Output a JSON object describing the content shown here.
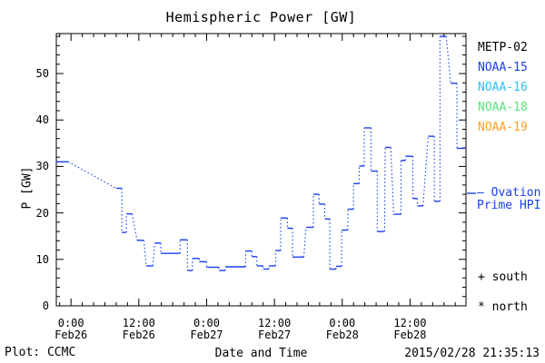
{
  "window": {
    "title": "Hemispheric Power [GW]"
  },
  "footer": {
    "credit": "Plot: CCMC",
    "timestamp": "2015/02/28 21:35:13"
  },
  "legend": {
    "satellites": [
      {
        "label": "METP-02",
        "color": "#000000"
      },
      {
        "label": "NOAA-15",
        "color": "#1a3fee"
      },
      {
        "label": "NOAA-16",
        "color": "#2fc1ef"
      },
      {
        "label": "NOAA-18",
        "color": "#5ce37a"
      },
      {
        "label": "NOAA-19",
        "color": "#ffa126"
      }
    ],
    "ovation": {
      "line1": "— Ovation",
      "line2": "Prime HPI",
      "color": "#1a3fee"
    },
    "markers": [
      {
        "symbol": "+",
        "label": "south"
      },
      {
        "symbol": "*",
        "label": "north"
      }
    ]
  },
  "chart_data": {
    "type": "line",
    "title": "Hemispheric Power [GW]",
    "xlabel": "Date and Time",
    "ylabel": "P [GW]",
    "series_name": "Ovation Prime HPI (blue dotted step line)",
    "series_color": "#1a3fee",
    "axis_color": "#000000",
    "background": "#ffffff",
    "grid": false,
    "legend_position": "right-outside",
    "ylim": [
      0,
      58.6
    ],
    "y_major_ticks": [
      0,
      10,
      20,
      30,
      40,
      50
    ],
    "y_minor_step": 2,
    "x_unit_hours_since": "2015-02-26 00:00",
    "xlim": [
      -2.6,
      69.9
    ],
    "x_major_step_hours": 12,
    "x_minor_step_hours": 2,
    "x_ticks": [
      {
        "t": 0,
        "time": "0:00",
        "date": "Feb26"
      },
      {
        "t": 12,
        "time": "12:00",
        "date": "Feb26"
      },
      {
        "t": 24,
        "time": "0:00",
        "date": "Feb27"
      },
      {
        "t": 36,
        "time": "12:00",
        "date": "Feb27"
      },
      {
        "t": 48,
        "time": "0:00",
        "date": "Feb28"
      },
      {
        "t": 60,
        "time": "12:00",
        "date": "Feb28"
      }
    ],
    "segments_note": "each entry = [t_start_h, t_end_h, GW]; solid flat dash per sample, dotted connectors between samples",
    "segments": [
      [
        -2.6,
        -0.5,
        31.0
      ],
      [
        8.0,
        9.0,
        25.3
      ],
      [
        9.0,
        9.8,
        15.8
      ],
      [
        9.8,
        10.8,
        19.8
      ],
      [
        11.7,
        12.9,
        14.1
      ],
      [
        13.3,
        14.5,
        8.6
      ],
      [
        14.8,
        15.9,
        13.5
      ],
      [
        15.9,
        19.3,
        11.3
      ],
      [
        19.3,
        20.6,
        14.2
      ],
      [
        20.6,
        21.5,
        7.6
      ],
      [
        21.5,
        22.7,
        10.2
      ],
      [
        22.7,
        24.0,
        9.5
      ],
      [
        24.0,
        26.2,
        8.3
      ],
      [
        26.2,
        27.3,
        7.6
      ],
      [
        27.3,
        30.9,
        8.4
      ],
      [
        30.9,
        32.0,
        11.8
      ],
      [
        32.0,
        32.9,
        10.6
      ],
      [
        32.9,
        34.0,
        8.6
      ],
      [
        34.0,
        35.0,
        7.9
      ],
      [
        35.0,
        36.2,
        8.6
      ],
      [
        36.2,
        37.1,
        11.9
      ],
      [
        37.1,
        38.3,
        18.9
      ],
      [
        38.3,
        39.2,
        16.7
      ],
      [
        39.2,
        41.2,
        10.5
      ],
      [
        41.6,
        42.9,
        16.9
      ],
      [
        42.9,
        43.9,
        24.0
      ],
      [
        43.9,
        44.9,
        21.9
      ],
      [
        44.9,
        45.8,
        18.7
      ],
      [
        45.8,
        46.9,
        7.9
      ],
      [
        46.9,
        47.9,
        8.5
      ],
      [
        47.9,
        49.0,
        16.3
      ],
      [
        49.0,
        50.0,
        20.8
      ],
      [
        50.0,
        51.0,
        26.3
      ],
      [
        51.0,
        51.9,
        30.1
      ],
      [
        51.9,
        53.1,
        38.3
      ],
      [
        53.1,
        54.2,
        29.0
      ],
      [
        54.2,
        55.5,
        16.0
      ],
      [
        55.6,
        56.6,
        34.1
      ],
      [
        57.1,
        58.4,
        19.7
      ],
      [
        58.4,
        59.2,
        31.3
      ],
      [
        59.2,
        60.5,
        32.2
      ],
      [
        60.5,
        61.3,
        23.1
      ],
      [
        61.3,
        62.3,
        21.5
      ],
      [
        63.2,
        64.3,
        36.5
      ],
      [
        64.3,
        65.3,
        22.5
      ],
      [
        65.3,
        66.4,
        58.0
      ],
      [
        67.2,
        68.3,
        47.9
      ],
      [
        68.3,
        69.7,
        33.9
      ]
    ]
  }
}
